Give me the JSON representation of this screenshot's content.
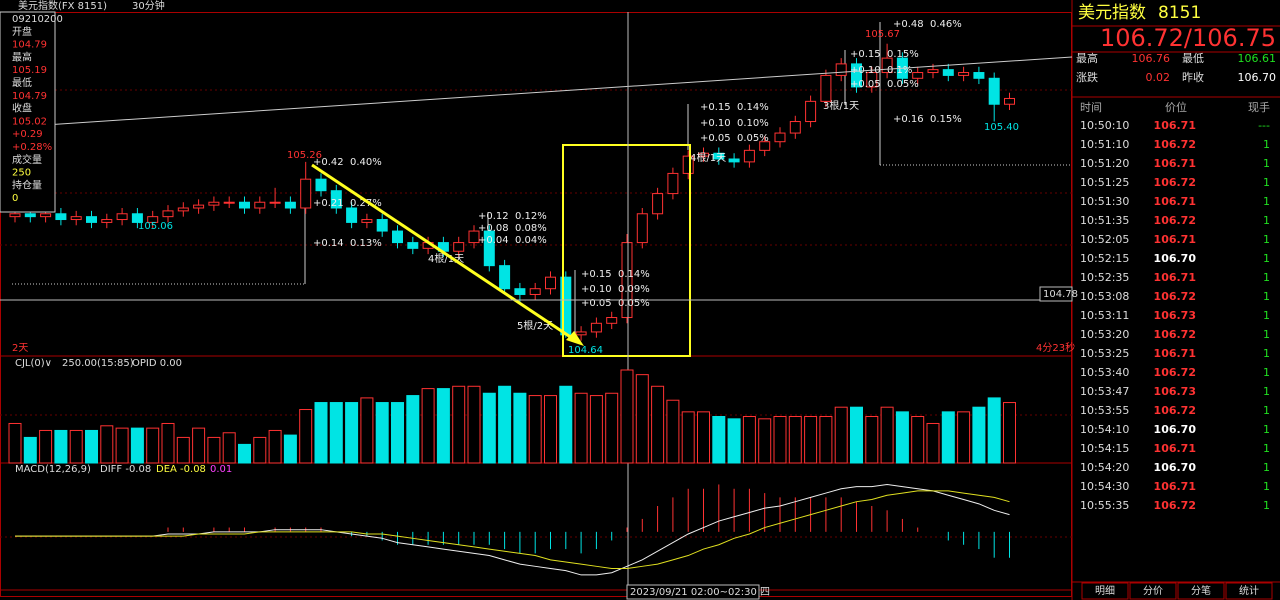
{
  "top_bar": {
    "symbol": "美元指数(FX 8151)",
    "period": "30分钟"
  },
  "info_box": [
    "09210200",
    "开盘",
    "104.79",
    "最高",
    "105.19",
    "最低",
    "104.79",
    "收盘",
    "105.02",
    "+0.29",
    "+0.28%",
    "成交量",
    "250",
    "持仓量",
    "0"
  ],
  "chart_data": {
    "type": "candlestick",
    "ylim": [
      104.59,
      105.78
    ],
    "candles": [
      [
        105.07,
        105.1,
        105.05,
        105.08
      ],
      [
        105.08,
        105.1,
        105.05,
        105.07
      ],
      [
        105.07,
        105.1,
        105.05,
        105.08
      ],
      [
        105.08,
        105.1,
        105.04,
        105.06
      ],
      [
        105.06,
        105.09,
        105.04,
        105.07
      ],
      [
        105.07,
        105.09,
        105.03,
        105.05
      ],
      [
        105.05,
        105.08,
        105.03,
        105.06
      ],
      [
        105.06,
        105.1,
        105.04,
        105.08
      ],
      [
        105.08,
        105.1,
        105.03,
        105.05
      ],
      [
        105.05,
        105.09,
        105.03,
        105.07
      ],
      [
        105.07,
        105.11,
        105.05,
        105.09
      ],
      [
        105.09,
        105.12,
        105.07,
        105.1
      ],
      [
        105.1,
        105.13,
        105.08,
        105.11
      ],
      [
        105.11,
        105.14,
        105.09,
        105.12
      ],
      [
        105.12,
        105.14,
        105.1,
        105.12
      ],
      [
        105.12,
        105.14,
        105.08,
        105.1
      ],
      [
        105.1,
        105.14,
        105.08,
        105.12
      ],
      [
        105.12,
        105.17,
        105.1,
        105.12
      ],
      [
        105.12,
        105.14,
        105.08,
        105.1
      ],
      [
        105.1,
        105.26,
        105.08,
        105.2
      ],
      [
        105.2,
        105.22,
        105.14,
        105.16
      ],
      [
        105.16,
        105.18,
        105.08,
        105.1
      ],
      [
        105.1,
        105.12,
        105.03,
        105.05
      ],
      [
        105.05,
        105.08,
        105.03,
        105.06
      ],
      [
        105.06,
        105.08,
        105.0,
        105.02
      ],
      [
        105.02,
        105.04,
        104.96,
        104.98
      ],
      [
        104.98,
        105.0,
        104.94,
        104.96
      ],
      [
        104.96,
        105.0,
        104.94,
        104.98
      ],
      [
        104.98,
        105.0,
        104.93,
        104.95
      ],
      [
        104.95,
        105.0,
        104.93,
        104.98
      ],
      [
        104.98,
        105.04,
        104.96,
        105.02
      ],
      [
        105.02,
        105.04,
        104.88,
        104.9
      ],
      [
        104.9,
        104.92,
        104.8,
        104.82
      ],
      [
        104.82,
        104.84,
        104.77,
        104.8
      ],
      [
        104.8,
        104.84,
        104.78,
        104.82
      ],
      [
        104.82,
        104.88,
        104.8,
        104.86
      ],
      [
        104.86,
        104.88,
        104.65,
        104.66
      ],
      [
        104.66,
        104.69,
        104.64,
        104.67
      ],
      [
        104.67,
        104.72,
        104.65,
        104.7
      ],
      [
        104.7,
        104.74,
        104.68,
        104.72
      ],
      [
        104.72,
        105.01,
        104.7,
        104.98
      ],
      [
        104.98,
        105.1,
        104.96,
        105.08
      ],
      [
        105.08,
        105.17,
        105.06,
        105.15
      ],
      [
        105.15,
        105.24,
        105.13,
        105.22
      ],
      [
        105.22,
        105.3,
        105.2,
        105.28
      ],
      [
        105.28,
        105.31,
        105.26,
        105.29
      ],
      [
        105.29,
        105.31,
        105.25,
        105.27
      ],
      [
        105.27,
        105.29,
        105.24,
        105.26
      ],
      [
        105.26,
        105.32,
        105.24,
        105.3
      ],
      [
        105.3,
        105.35,
        105.28,
        105.33
      ],
      [
        105.33,
        105.38,
        105.31,
        105.36
      ],
      [
        105.36,
        105.42,
        105.34,
        105.4
      ],
      [
        105.4,
        105.49,
        105.38,
        105.47
      ],
      [
        105.47,
        105.58,
        105.45,
        105.56
      ],
      [
        105.56,
        105.62,
        105.54,
        105.6
      ],
      [
        105.6,
        105.62,
        105.5,
        105.52
      ],
      [
        105.52,
        105.59,
        105.5,
        105.57
      ],
      [
        105.57,
        105.67,
        105.55,
        105.62
      ],
      [
        105.62,
        105.64,
        105.53,
        105.55
      ],
      [
        105.55,
        105.59,
        105.53,
        105.57
      ],
      [
        105.57,
        105.6,
        105.55,
        105.58
      ],
      [
        105.58,
        105.6,
        105.54,
        105.56
      ],
      [
        105.56,
        105.59,
        105.54,
        105.57
      ],
      [
        105.57,
        105.59,
        105.53,
        105.55
      ],
      [
        105.55,
        105.57,
        105.4,
        105.46
      ],
      [
        105.46,
        105.5,
        105.44,
        105.48
      ]
    ],
    "up_color": "#ff3232",
    "down_color": "#00e4e4",
    "annotations": [
      "105.26",
      "+0.42  0.40%",
      "+0.21  0.27%",
      "+0.14  0.13%",
      "105.06",
      "+0.12  0.12%",
      "+0.08  0.08%",
      "+0.04  0.04%",
      "4根/1天",
      "+0.15  0.14%",
      "+0.10  0.09%",
      "+0.05  0.05%",
      "5根/2天",
      "104.64",
      "+0.15  0.14%",
      "+0.10  0.10%",
      "+0.05  0.05%",
      "4根/1天",
      "105.67",
      "+0.48  0.46%",
      "+0.15  0.15%",
      "+0.10  0.1%",
      "+0.05  0.05%",
      "3根/1天",
      "+0.16  0.15%",
      "105.40"
    ],
    "crosshair_price": "104.78",
    "left_footer": "2天",
    "right_footer": "4分23秒",
    "time_label": "2023/09/21 02:00~02:30 四",
    "volume": {
      "header": [
        "CJL(0)∨",
        "250.00(15:85)",
        "OPID 0.00"
      ],
      "ylim": [
        0,
        400
      ],
      "values": [
        170,
        110,
        140,
        140,
        140,
        140,
        160,
        150,
        150,
        150,
        170,
        110,
        150,
        110,
        130,
        80,
        110,
        140,
        120,
        230,
        260,
        260,
        260,
        280,
        260,
        260,
        290,
        320,
        320,
        330,
        330,
        300,
        330,
        300,
        290,
        290,
        330,
        300,
        290,
        300,
        400,
        380,
        330,
        270,
        220,
        220,
        200,
        190,
        200,
        190,
        200,
        200,
        200,
        200,
        240,
        240,
        200,
        240,
        220,
        200,
        170,
        220,
        220,
        240,
        280,
        260
      ]
    },
    "macd": {
      "header": [
        "MACD(12,26,9)",
        "DIFF -0.08",
        "DEA -0.08",
        "0.01"
      ],
      "ylim": [
        -0.27,
        0.25
      ],
      "diff": [
        -0.02,
        -0.02,
        -0.02,
        -0.02,
        -0.02,
        -0.02,
        -0.02,
        -0.02,
        -0.02,
        -0.02,
        -0.01,
        -0.01,
        -0.01,
        0,
        0,
        0,
        0,
        0.01,
        0.01,
        0.01,
        0.01,
        0,
        -0.01,
        -0.02,
        -0.03,
        -0.05,
        -0.06,
        -0.07,
        -0.08,
        -0.09,
        -0.1,
        -0.11,
        -0.13,
        -0.15,
        -0.16,
        -0.17,
        -0.18,
        -0.2,
        -0.2,
        -0.19,
        -0.16,
        -0.13,
        -0.09,
        -0.05,
        -0.01,
        0.02,
        0.05,
        0.07,
        0.09,
        0.11,
        0.12,
        0.14,
        0.16,
        0.18,
        0.2,
        0.21,
        0.21,
        0.22,
        0.21,
        0.2,
        0.19,
        0.17,
        0.15,
        0.13,
        0.1,
        0.08
      ],
      "dea": [
        -0.02,
        -0.02,
        -0.02,
        -0.02,
        -0.02,
        -0.02,
        -0.02,
        -0.02,
        -0.02,
        -0.02,
        -0.02,
        -0.02,
        -0.01,
        -0.01,
        -0.01,
        -0.01,
        0,
        0,
        0,
        0,
        0,
        0,
        0,
        -0.01,
        -0.01,
        -0.02,
        -0.03,
        -0.04,
        -0.05,
        -0.06,
        -0.07,
        -0.08,
        -0.09,
        -0.1,
        -0.11,
        -0.13,
        -0.14,
        -0.15,
        -0.16,
        -0.17,
        -0.17,
        -0.16,
        -0.15,
        -0.13,
        -0.11,
        -0.08,
        -0.06,
        -0.03,
        -0.01,
        0.02,
        0.04,
        0.06,
        0.08,
        0.1,
        0.12,
        0.14,
        0.15,
        0.17,
        0.18,
        0.19,
        0.19,
        0.19,
        0.18,
        0.17,
        0.16,
        0.14
      ],
      "hist": [
        0,
        0,
        0,
        0,
        0,
        0,
        0,
        0,
        0,
        0,
        0.02,
        0.02,
        0,
        0.02,
        0.02,
        0.02,
        0,
        0.02,
        0.02,
        0.02,
        0.02,
        0,
        -0.02,
        -0.02,
        -0.04,
        -0.06,
        -0.06,
        -0.06,
        -0.06,
        -0.06,
        -0.06,
        -0.06,
        -0.08,
        -0.1,
        -0.1,
        -0.08,
        -0.08,
        -0.1,
        -0.08,
        -0.04,
        0.02,
        0.06,
        0.12,
        0.16,
        0.2,
        0.2,
        0.22,
        0.2,
        0.2,
        0.18,
        0.16,
        0.16,
        0.16,
        0.16,
        0.16,
        0.14,
        0.12,
        0.1,
        0.06,
        0.02,
        0,
        -0.04,
        -0.06,
        -0.08,
        -0.12,
        -0.12
      ]
    }
  },
  "quote": {
    "name": "美元指数",
    "code": "8151",
    "price": "106.72/106.75",
    "stats": [
      [
        "最高",
        "106.76",
        "最低",
        "106.61"
      ],
      [
        "涨跌",
        "0.02",
        "昨收",
        "106.70"
      ]
    ]
  },
  "trades": {
    "headers": [
      "时间",
      "价位",
      "现手"
    ],
    "rows": [
      [
        "10:50:10",
        "106.71",
        "---"
      ],
      [
        "10:51:10",
        "106.72",
        "1"
      ],
      [
        "10:51:20",
        "106.71",
        "1"
      ],
      [
        "10:51:25",
        "106.72",
        "1"
      ],
      [
        "10:51:30",
        "106.71",
        "1"
      ],
      [
        "10:51:35",
        "106.72",
        "1"
      ],
      [
        "10:52:05",
        "106.71",
        "1"
      ],
      [
        "10:52:15",
        "106.70",
        "1"
      ],
      [
        "10:52:35",
        "106.71",
        "1"
      ],
      [
        "10:53:08",
        "106.72",
        "1"
      ],
      [
        "10:53:11",
        "106.73",
        "1"
      ],
      [
        "10:53:20",
        "106.72",
        "1"
      ],
      [
        "10:53:25",
        "106.71",
        "1"
      ],
      [
        "10:53:40",
        "106.72",
        "1"
      ],
      [
        "10:53:47",
        "106.73",
        "1"
      ],
      [
        "10:53:55",
        "106.72",
        "1"
      ],
      [
        "10:54:10",
        "106.70",
        "1"
      ],
      [
        "10:54:15",
        "106.71",
        "1"
      ],
      [
        "10:54:20",
        "106.70",
        "1"
      ],
      [
        "10:54:30",
        "106.71",
        "1"
      ],
      [
        "10:55:35",
        "106.72",
        "1"
      ]
    ]
  },
  "tabs": [
    "明细",
    "分价",
    "分笔",
    "统计"
  ]
}
